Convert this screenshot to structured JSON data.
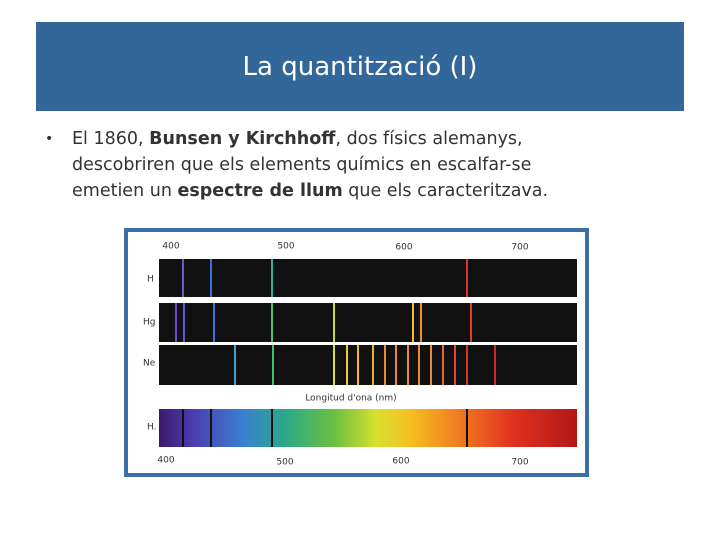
{
  "header": {
    "title": "La quantització (I)"
  },
  "bullet": {
    "parts": [
      "El 1860, ",
      "Bunsen y Kirchhoff",
      ", dos físics alemanys,",
      "descobriren que els elements químics en escalfar-se",
      "emetien un ",
      "espectre de llum",
      " que els caracteritzava."
    ]
  },
  "figure": {
    "top_ticks": [
      "400",
      "500",
      "600",
      "700"
    ],
    "rows": [
      "H",
      "Hg",
      "Ne",
      "H."
    ],
    "caption": "Longitud d'ona (nm)",
    "bottom_ticks": [
      "400",
      "500",
      "600",
      "700"
    ]
  }
}
